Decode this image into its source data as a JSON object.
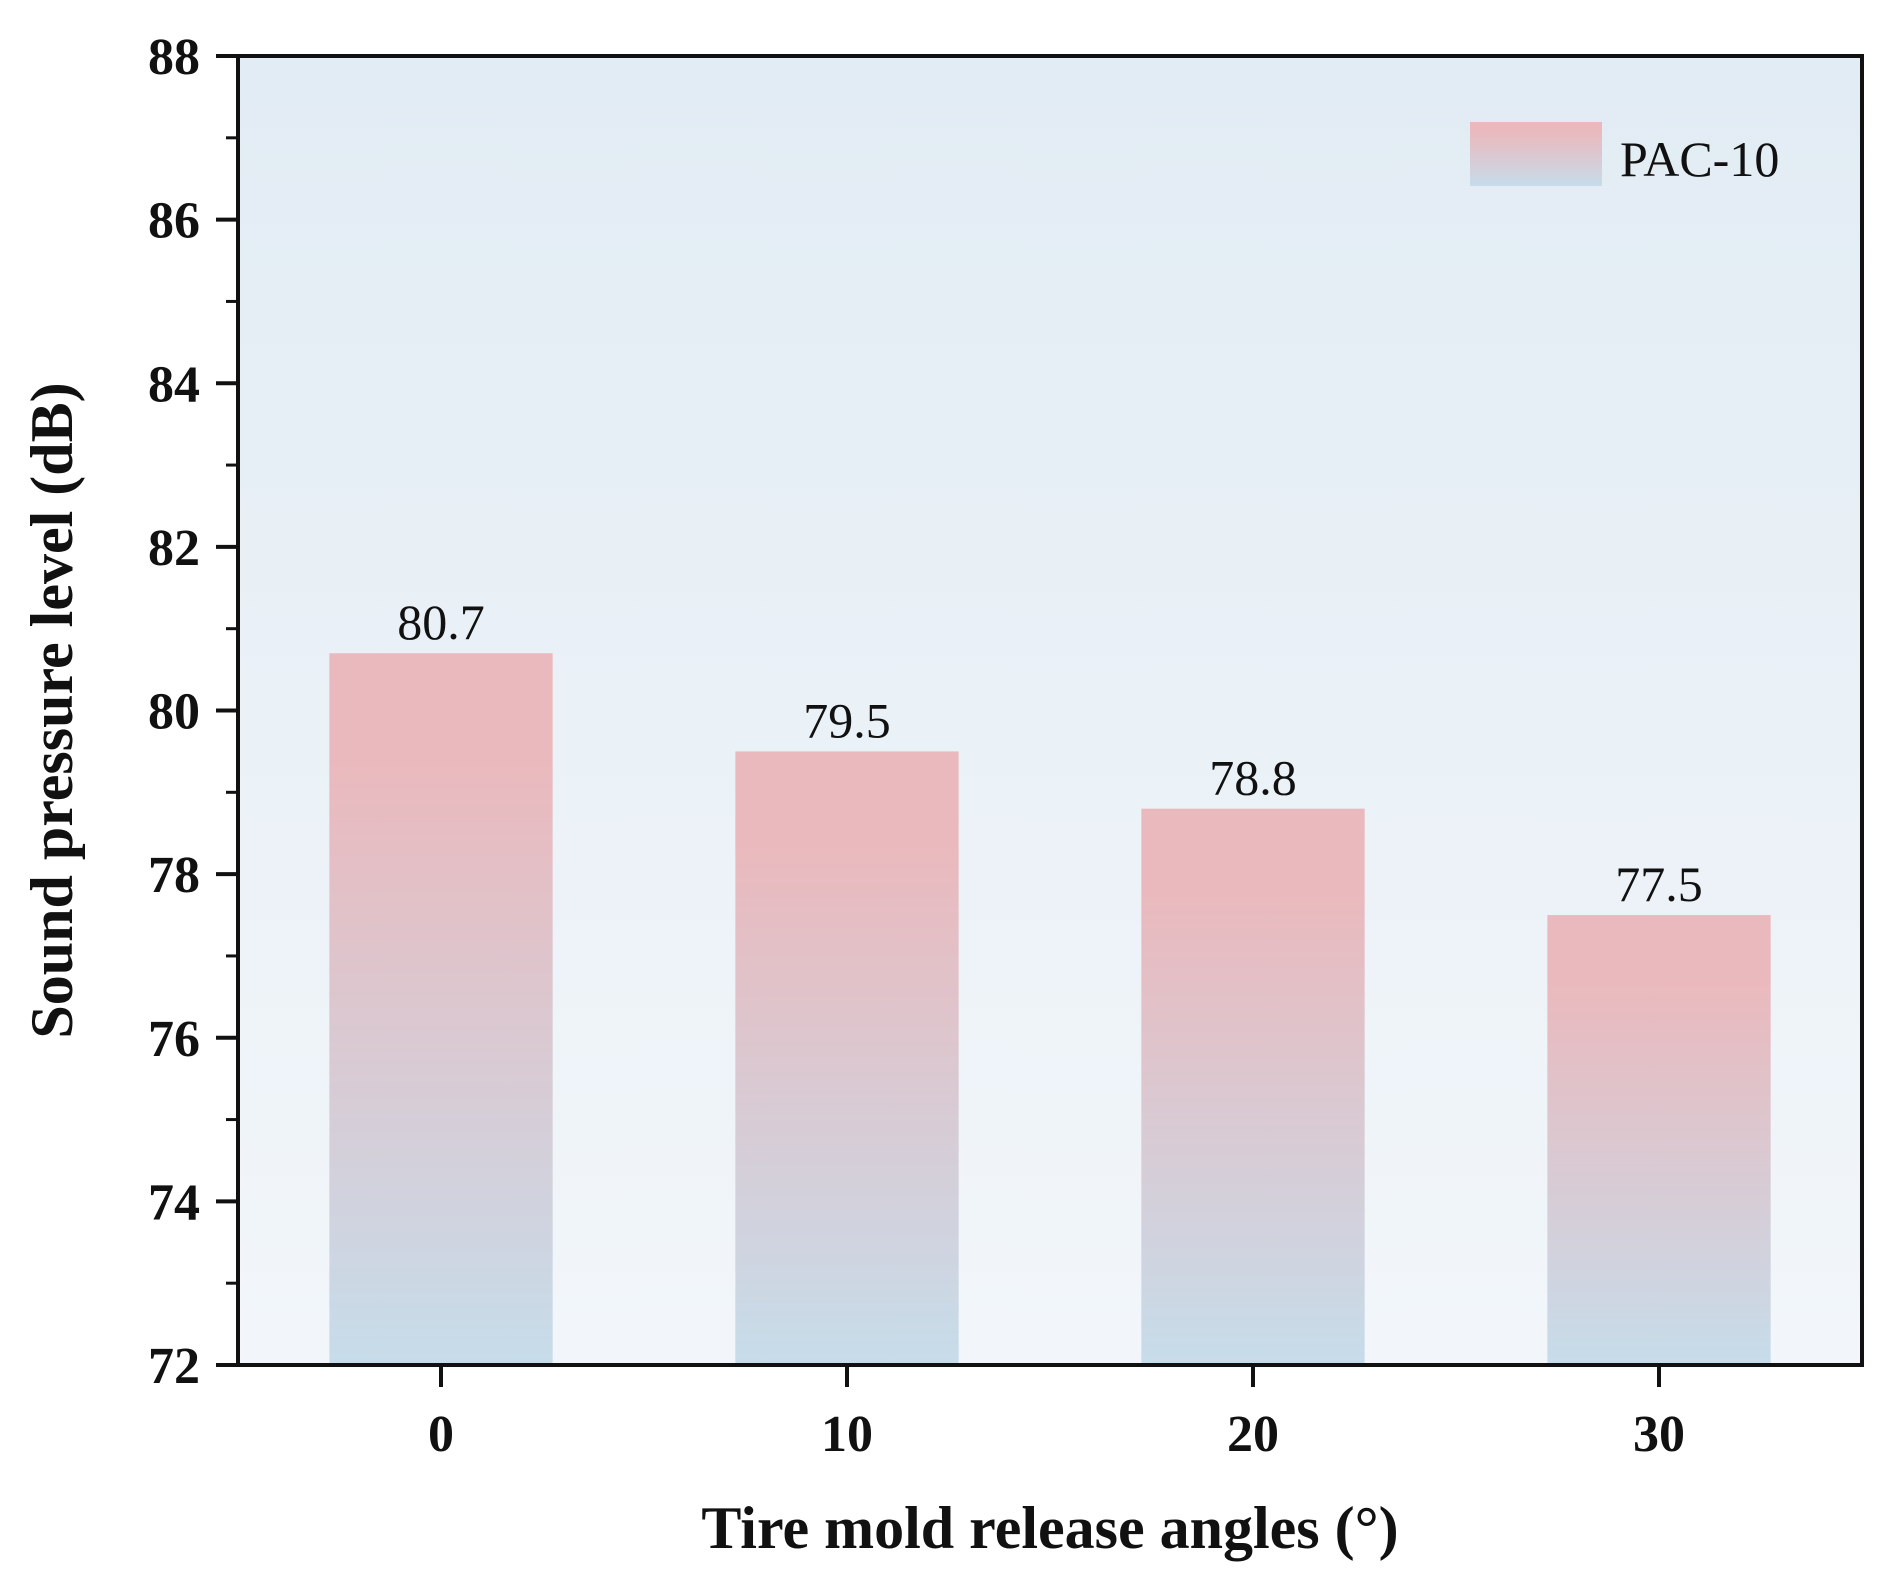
{
  "chart_data": {
    "type": "bar",
    "title": "",
    "categories": [
      "0",
      "10",
      "20",
      "30"
    ],
    "series": [
      {
        "name": "PAC-10",
        "values": [
          80.7,
          79.5,
          78.8,
          77.5
        ]
      }
    ],
    "data_labels": [
      "80.7",
      "79.5",
      "78.8",
      "77.5"
    ],
    "xlabel": "Tire mold release angles (°)",
    "ylabel": "Sound pressure level (dB)",
    "ylim": [
      72,
      88
    ],
    "yticks": [
      "72",
      "74",
      "76",
      "78",
      "80",
      "82",
      "84",
      "86",
      "88"
    ],
    "grid": false,
    "legend_position": "top-right",
    "colors": {
      "bar_top": "#eab9bd",
      "bar_bottom": "#c7dcea",
      "plot_bg_top": "#e2ecf4",
      "plot_bg_bottom": "#f2f6fa",
      "axis": "#111111"
    }
  }
}
